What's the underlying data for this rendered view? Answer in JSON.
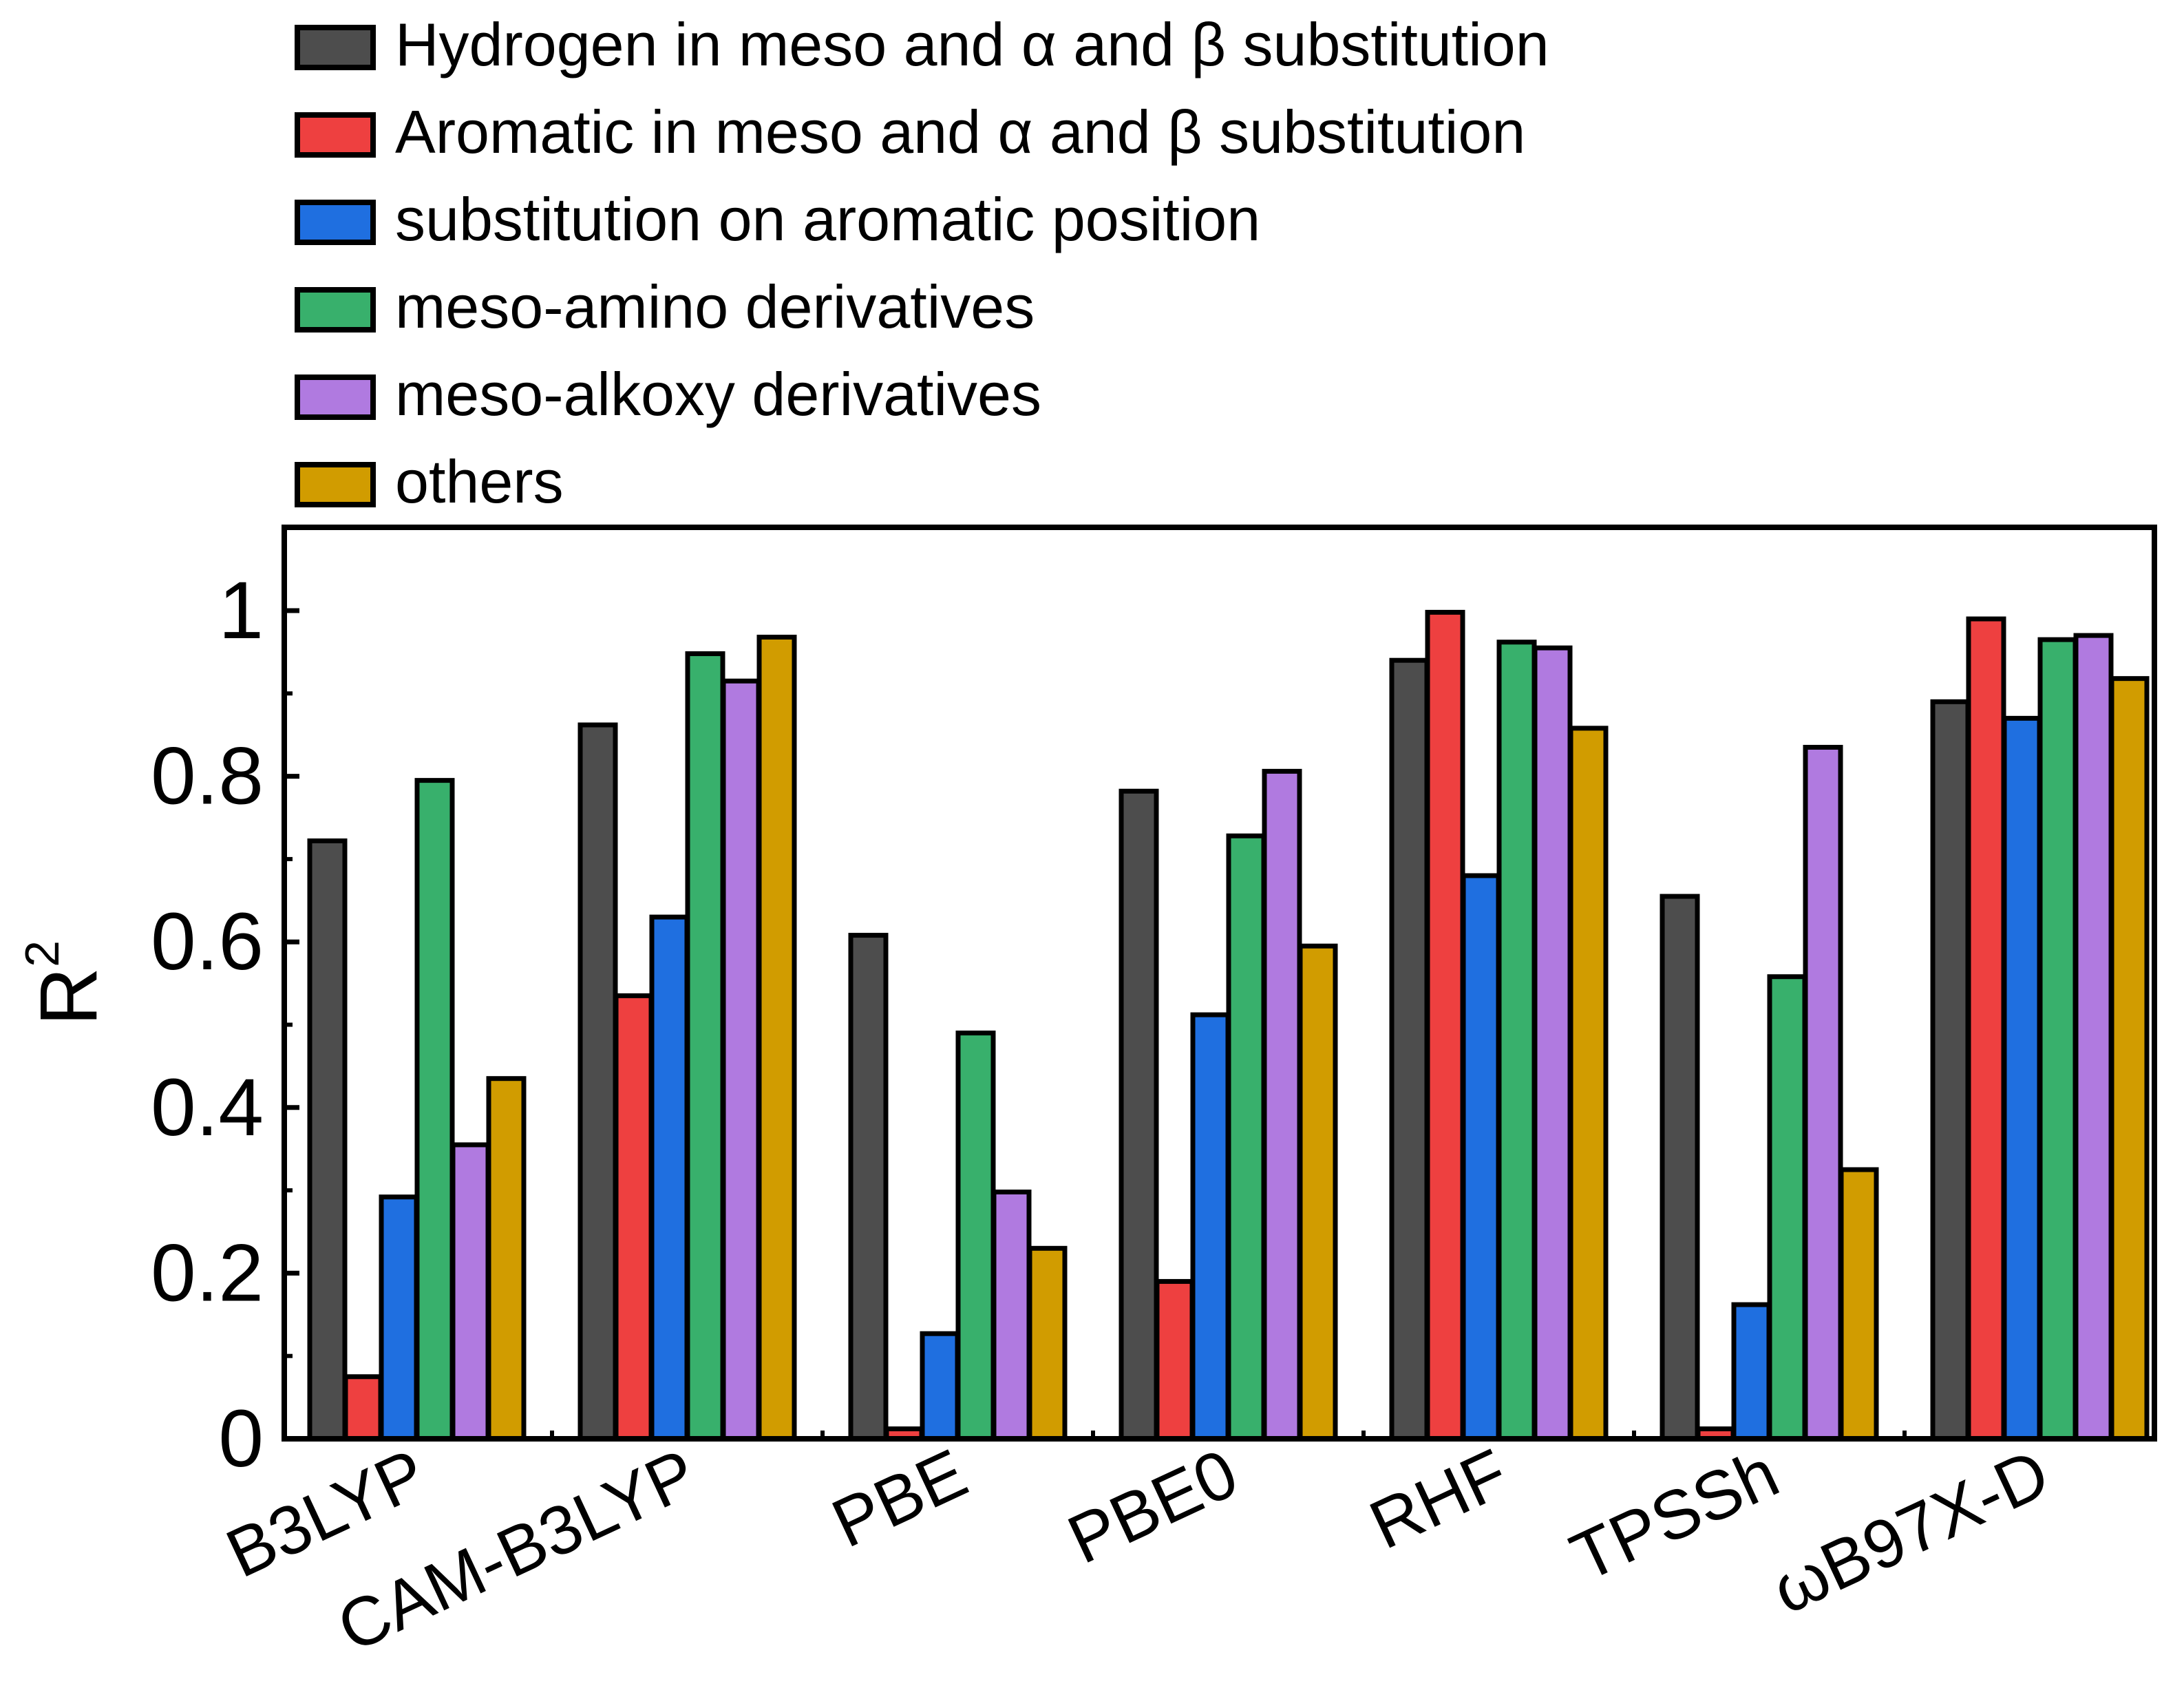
{
  "chart_data": {
    "type": "bar",
    "title": "",
    "xlabel": "",
    "ylabel": "R",
    "ylabel_superscript": "2",
    "ylim": [
      0,
      1.1
    ],
    "yticks": [
      0,
      0.2,
      0.4,
      0.6,
      0.8,
      1
    ],
    "ytick_labels": [
      "0",
      "0.2",
      "0.4",
      "0.6",
      "0.8",
      "1"
    ],
    "grid": false,
    "legend_position": "top-left (above plot)",
    "categories": [
      "B3LYP",
      "CAM-B3LYP",
      "PBE",
      "PBE0",
      "RHF",
      "TPSSh",
      "ωB97X-D"
    ],
    "series": [
      {
        "name": "Hydrogen in meso and α and β substitution",
        "color": "#4d4d4d",
        "values": [
          0.722,
          0.862,
          0.608,
          0.782,
          0.94,
          0.655,
          0.89
        ]
      },
      {
        "name": "Aromatic in meso and α and β substitution",
        "color": "#ee4040",
        "values": [
          0.075,
          0.535,
          0.012,
          0.19,
          0.998,
          0.012,
          0.99
        ]
      },
      {
        "name": "substitution on aromatic position",
        "color": "#1f6fe0",
        "values": [
          0.292,
          0.63,
          0.127,
          0.512,
          0.68,
          0.162,
          0.87
        ]
      },
      {
        "name": "meso-amino derivatives",
        "color": "#38b06c",
        "values": [
          0.795,
          0.948,
          0.49,
          0.728,
          0.962,
          0.558,
          0.965
        ]
      },
      {
        "name": "meso-alkoxy derivatives",
        "color": "#b07ae0",
        "values": [
          0.355,
          0.915,
          0.298,
          0.806,
          0.955,
          0.835,
          0.97
        ]
      },
      {
        "name": "others",
        "color": "#d19c00",
        "values": [
          0.435,
          0.968,
          0.23,
          0.595,
          0.858,
          0.325,
          0.918
        ]
      }
    ]
  }
}
